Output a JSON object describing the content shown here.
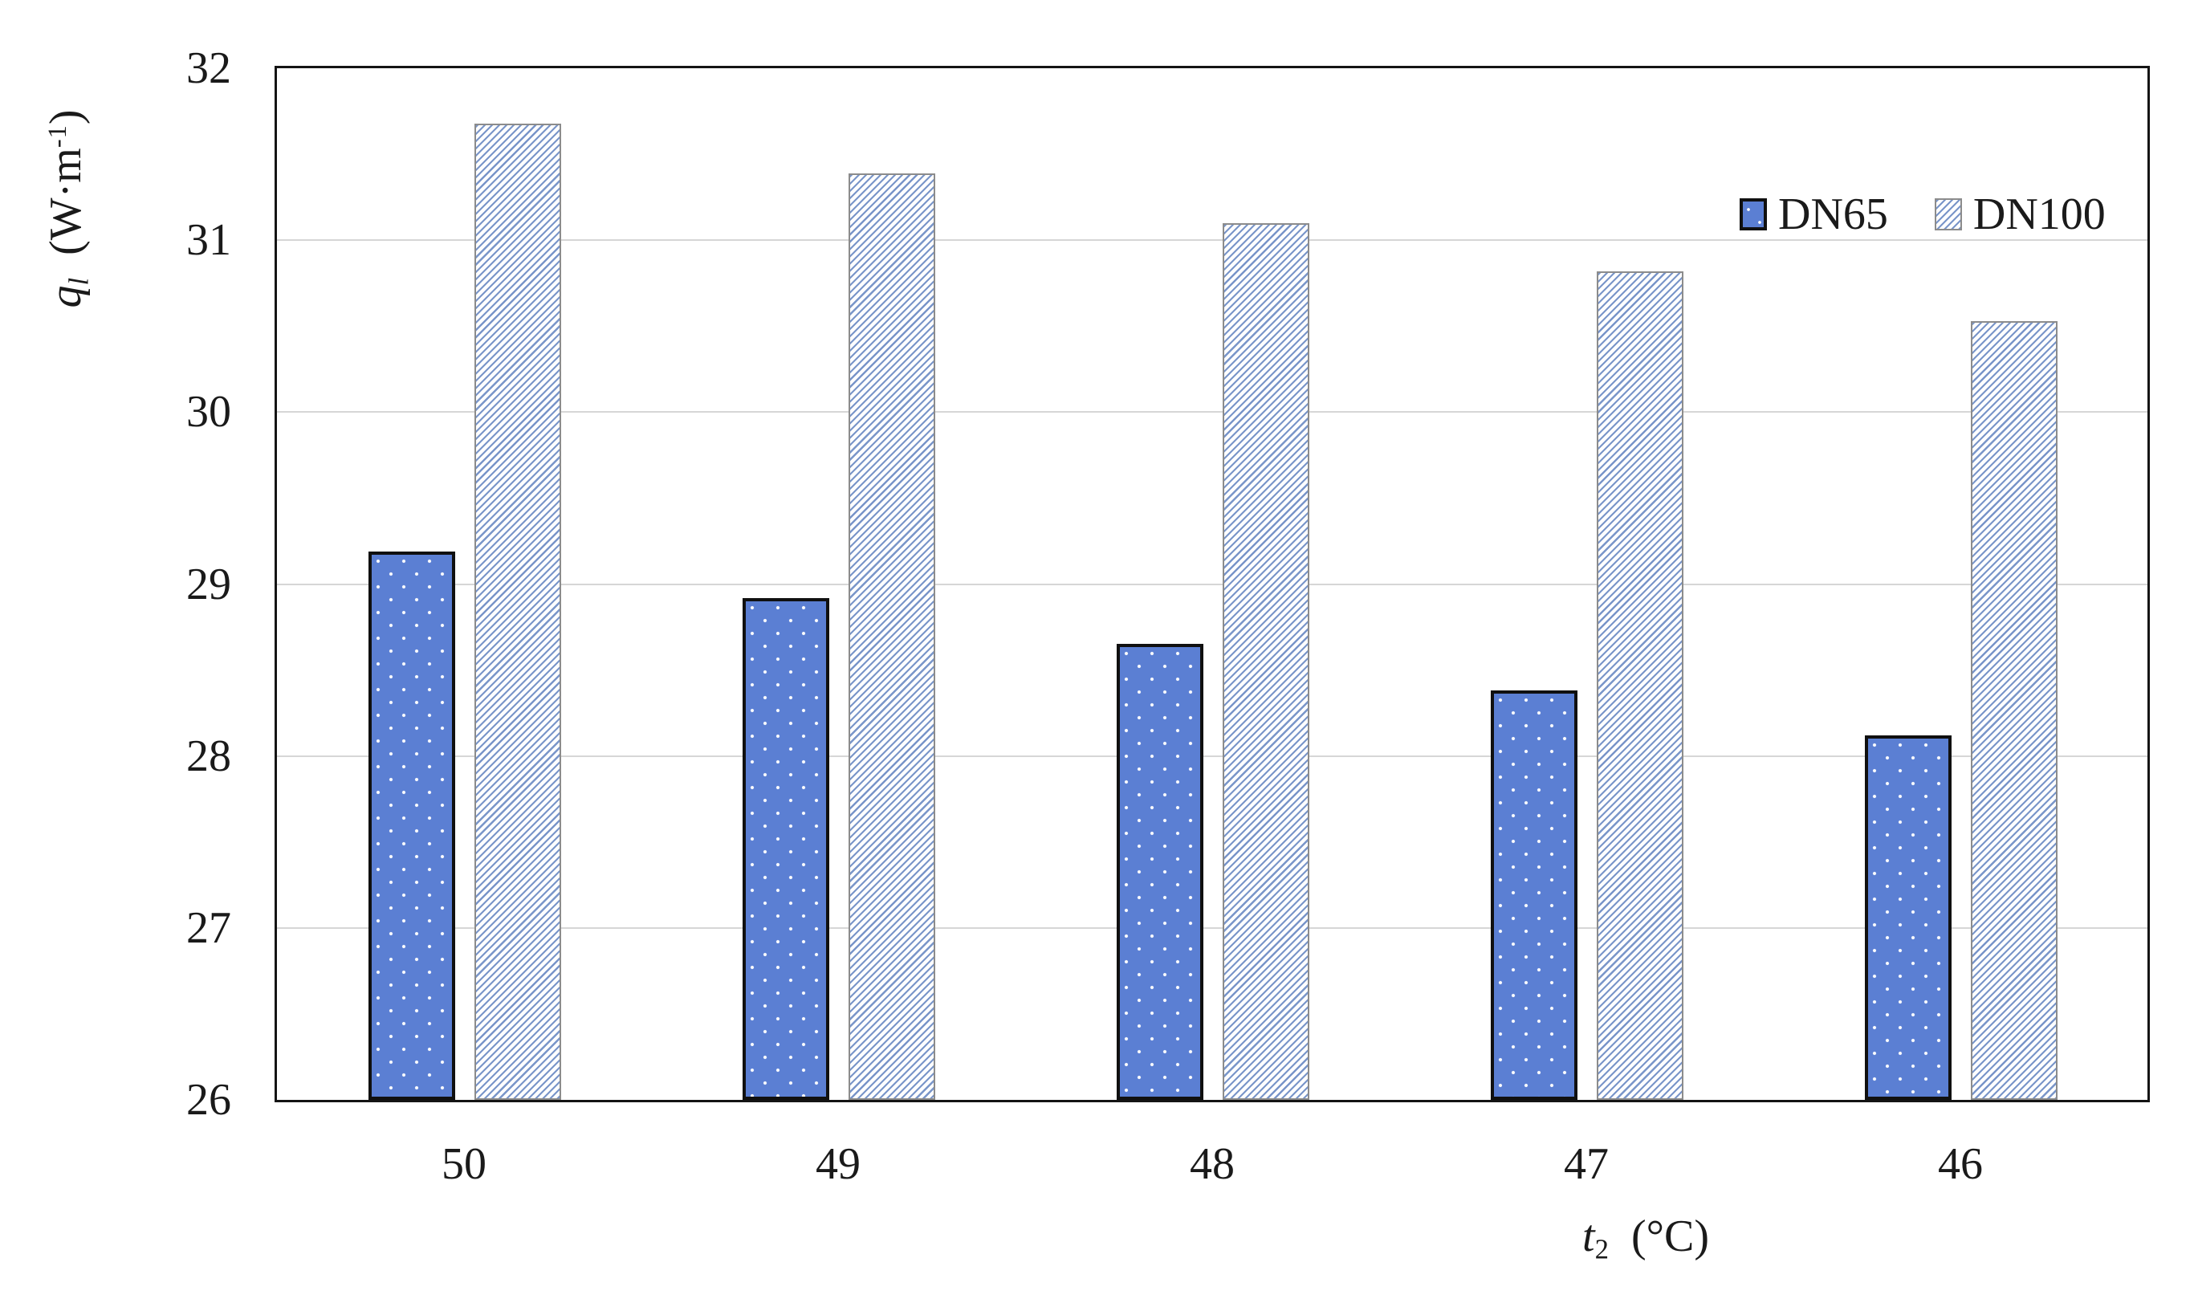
{
  "chart_data": {
    "type": "bar",
    "title": "",
    "categories": [
      "50",
      "49",
      "48",
      "47",
      "46"
    ],
    "series": [
      {
        "name": "DN65",
        "values": [
          29.19,
          28.92,
          28.65,
          28.38,
          28.12
        ],
        "fill": "#5b7fd3",
        "pattern": "white-dots",
        "border_color": "#101010"
      },
      {
        "name": "DN100",
        "values": [
          31.68,
          31.39,
          31.1,
          30.82,
          30.53
        ],
        "fill": "#ffffff",
        "pattern": "blue-diagonal-hatch",
        "stripe_color": "#7995c9",
        "border_color": "#8c8c8c"
      }
    ],
    "xlabel": {
      "symbol": "t",
      "subscript": "2",
      "unit": "(°C)"
    },
    "ylabel": {
      "symbol": "q",
      "subscript": "l",
      "unit_open": "(W·m",
      "unit_sup": "-1",
      "unit_close": ")"
    },
    "ylim": [
      26,
      32
    ],
    "yticks": [
      26,
      27,
      28,
      29,
      30,
      31,
      32
    ],
    "grid": "horizontal",
    "gridline_color": "#d6d6d6",
    "legend_position": "top-right-inside"
  },
  "colors": {
    "dn65_fill": "#5b7fd3",
    "hatch_stripe": "#7995c9",
    "gridline": "#d6d6d6",
    "axis_frame": "#141414",
    "text": "#1a1a1a",
    "background": "#ffffff"
  }
}
